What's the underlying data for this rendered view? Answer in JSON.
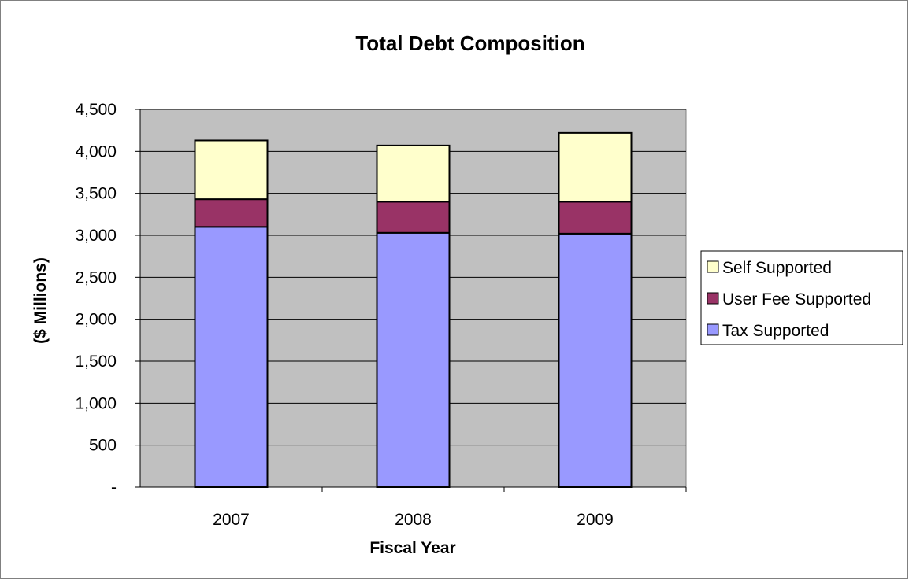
{
  "chart_data": {
    "type": "bar",
    "stacked": true,
    "title": "Total Debt Composition",
    "xlabel": "Fiscal Year",
    "ylabel": "($ Millions)",
    "categories": [
      "2007",
      "2008",
      "2009"
    ],
    "series": [
      {
        "name": "Tax Supported",
        "values": [
          3100,
          3030,
          3020
        ],
        "color": "#9999ff"
      },
      {
        "name": "User Fee Supported",
        "values": [
          330,
          370,
          380
        ],
        "color": "#993366"
      },
      {
        "name": "Self Supported",
        "values": [
          700,
          670,
          820
        ],
        "color": "#ffffcc"
      }
    ],
    "legend_order": [
      "Self Supported",
      "User Fee Supported",
      "Tax Supported"
    ],
    "ylim": [
      0,
      4500
    ],
    "yticks": [
      0,
      500,
      1000,
      1500,
      2000,
      2500,
      3000,
      3500,
      4000,
      4500
    ],
    "ytick_labels": [
      "-",
      "500",
      "1,000",
      "1,500",
      "2,000",
      "2,500",
      "3,000",
      "3,500",
      "4,000",
      "4,500"
    ],
    "grid": true,
    "plot_background": "#c0c0c0",
    "legend_position": "right"
  }
}
